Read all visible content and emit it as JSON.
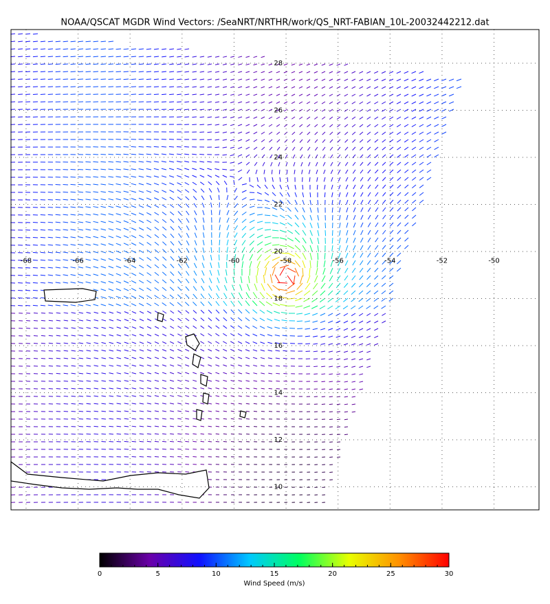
{
  "title": "NOAA/QSCAT MGDR Wind Vectors: /SeaNRT/NRTHR/work/QS_NRT-FABIAN_10L-20032442212.dat",
  "map": {
    "lonlim": [
      -68.58,
      -48.27
    ],
    "latlim": [
      9.02,
      29.43
    ],
    "lon_ticks": [
      -68,
      -66,
      -64,
      -62,
      -60,
      -58,
      -56,
      -54,
      -52,
      -50
    ],
    "lat_ticks": [
      10,
      12,
      14,
      16,
      18,
      20,
      22,
      24,
      26,
      28
    ]
  },
  "colorbar": {
    "label": "Wind Speed (m/s)",
    "lim": [
      0,
      30
    ],
    "ticks": [
      0,
      5,
      10,
      15,
      20,
      25,
      30
    ],
    "colors": [
      "#000000",
      "#6a00a8",
      "#1010ff",
      "#00c8ff",
      "#00ff60",
      "#e8ff00",
      "#ff9000",
      "#ff0000"
    ]
  }
}
